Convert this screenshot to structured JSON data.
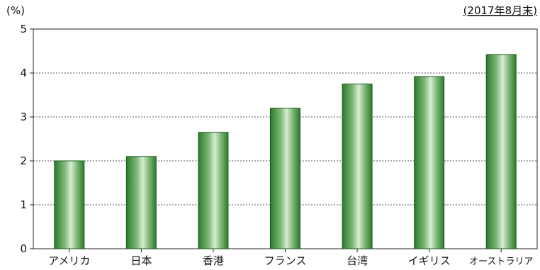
{
  "chart_data": {
    "type": "bar",
    "unit_label": "(%)",
    "note": "(2017年8月末)",
    "categories": [
      "アメリカ",
      "日本",
      "香港",
      "フランス",
      "台湾",
      "イギリス",
      "オーストラリア"
    ],
    "values": [
      2.0,
      2.1,
      2.65,
      3.2,
      3.75,
      3.92,
      4.42
    ],
    "ylim": [
      0,
      5
    ],
    "yticks": [
      0,
      1,
      2,
      3,
      4,
      5
    ],
    "grid": true,
    "bar_color": "#2e7d32",
    "bar_highlight": "#d7ead3"
  }
}
